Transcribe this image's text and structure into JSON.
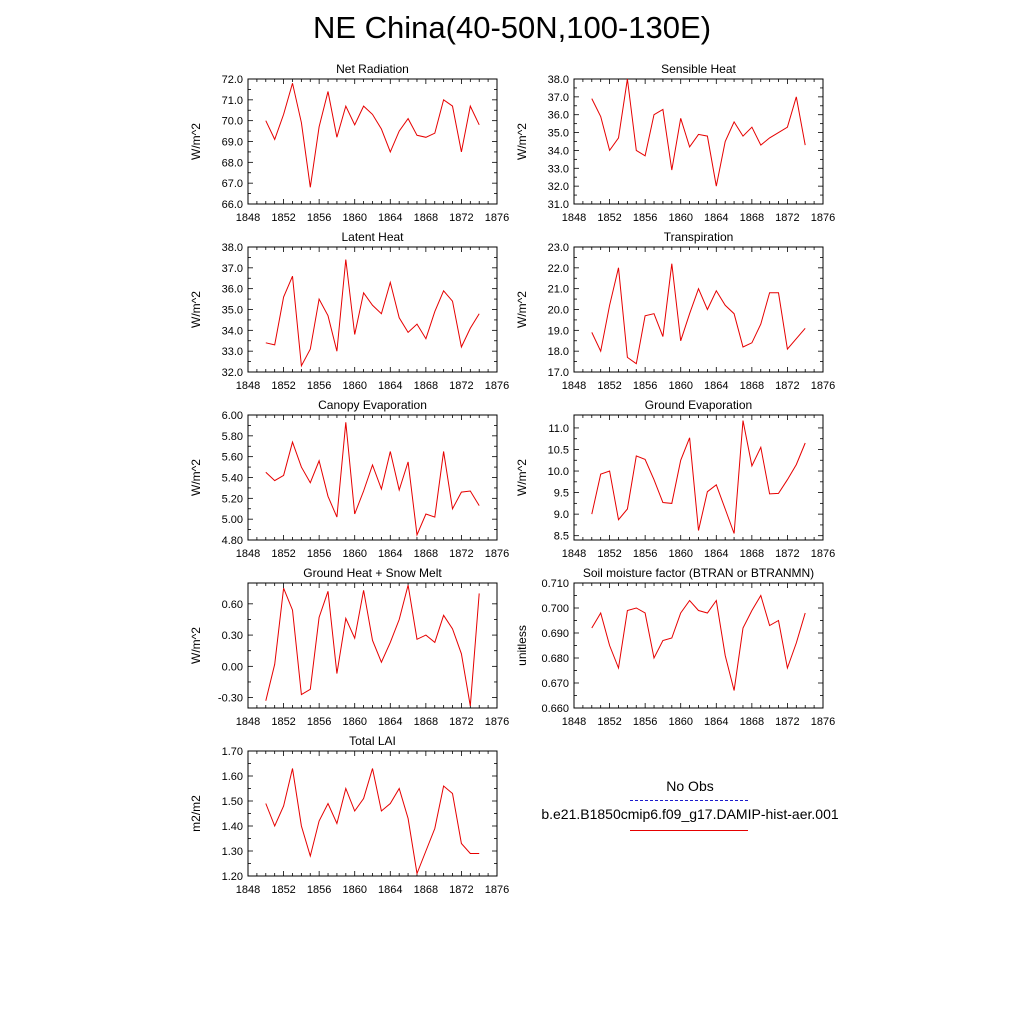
{
  "title": "NE China(40-50N,100-130E)",
  "colors": {
    "model": "#e60000",
    "obs": "#1a1acd",
    "axis": "#000000"
  },
  "legend": {
    "obs_label": "No Obs",
    "case_label": "b.e21.B1850cmip6.f09_g17.DAMIP-hist-aer.001"
  },
  "chart_data": [
    {
      "type": "line",
      "title": "Net Radiation",
      "xlabel": "",
      "ylabel": "W/m^2",
      "xlim": [
        1848,
        1876
      ],
      "ylim": [
        66.0,
        72.0
      ],
      "x_ticks": [
        "1848",
        "1852",
        "1856",
        "1860",
        "1864",
        "1868",
        "1872",
        "1876"
      ],
      "y_ticks": [
        "66.0",
        "67.0",
        "68.0",
        "69.0",
        "70.0",
        "71.0",
        "72.0"
      ],
      "x": [
        1850,
        1851,
        1852,
        1853,
        1854,
        1855,
        1856,
        1857,
        1858,
        1859,
        1860,
        1861,
        1862,
        1863,
        1864,
        1865,
        1866,
        1867,
        1868,
        1869,
        1870,
        1871,
        1872,
        1873,
        1874
      ],
      "series": [
        {
          "values": [
            70.0,
            69.1,
            70.3,
            71.8,
            69.9,
            66.8,
            69.7,
            71.4,
            69.2,
            70.7,
            69.8,
            70.7,
            70.3,
            69.6,
            68.5,
            69.5,
            70.1,
            69.3,
            69.2,
            69.4,
            71.0,
            70.7,
            68.5,
            70.7,
            69.8
          ]
        }
      ]
    },
    {
      "type": "line",
      "title": "Sensible Heat",
      "xlabel": "",
      "ylabel": "W/m^2",
      "xlim": [
        1848,
        1876
      ],
      "ylim": [
        31.0,
        38.0
      ],
      "x_ticks": [
        "1848",
        "1852",
        "1856",
        "1860",
        "1864",
        "1868",
        "1872",
        "1876"
      ],
      "y_ticks": [
        "31.0",
        "32.0",
        "33.0",
        "34.0",
        "35.0",
        "36.0",
        "37.0",
        "38.0"
      ],
      "x": [
        1850,
        1851,
        1852,
        1853,
        1854,
        1855,
        1856,
        1857,
        1858,
        1859,
        1860,
        1861,
        1862,
        1863,
        1864,
        1865,
        1866,
        1867,
        1868,
        1869,
        1870,
        1871,
        1872,
        1873,
        1874
      ],
      "series": [
        {
          "values": [
            36.9,
            35.9,
            34.0,
            34.7,
            38.0,
            34.0,
            33.7,
            36.0,
            36.3,
            32.9,
            35.8,
            34.2,
            34.9,
            34.8,
            32.0,
            34.5,
            35.6,
            34.8,
            35.3,
            34.3,
            34.7,
            35.0,
            35.3,
            37.0,
            34.3
          ]
        }
      ]
    },
    {
      "type": "line",
      "title": "Latent Heat",
      "xlabel": "",
      "ylabel": "W/m^2",
      "xlim": [
        1848,
        1876
      ],
      "ylim": [
        32.0,
        38.0
      ],
      "x_ticks": [
        "1848",
        "1852",
        "1856",
        "1860",
        "1864",
        "1868",
        "1872",
        "1876"
      ],
      "y_ticks": [
        "32.0",
        "33.0",
        "34.0",
        "35.0",
        "36.0",
        "37.0",
        "38.0"
      ],
      "x": [
        1850,
        1851,
        1852,
        1853,
        1854,
        1855,
        1856,
        1857,
        1858,
        1859,
        1860,
        1861,
        1862,
        1863,
        1864,
        1865,
        1866,
        1867,
        1868,
        1869,
        1870,
        1871,
        1872,
        1873,
        1874
      ],
      "series": [
        {
          "values": [
            33.4,
            33.3,
            35.6,
            36.6,
            32.3,
            33.1,
            35.5,
            34.7,
            33.0,
            37.4,
            33.8,
            35.8,
            35.2,
            34.8,
            36.3,
            34.6,
            33.9,
            34.3,
            33.6,
            34.9,
            35.9,
            35.4,
            33.2,
            34.1,
            34.8
          ]
        }
      ]
    },
    {
      "type": "line",
      "title": "Transpiration",
      "xlabel": "",
      "ylabel": "W/m^2",
      "xlim": [
        1848,
        1876
      ],
      "ylim": [
        17.0,
        23.0
      ],
      "x_ticks": [
        "1848",
        "1852",
        "1856",
        "1860",
        "1864",
        "1868",
        "1872",
        "1876"
      ],
      "y_ticks": [
        "17.0",
        "18.0",
        "19.0",
        "20.0",
        "21.0",
        "22.0",
        "23.0"
      ],
      "x": [
        1850,
        1851,
        1852,
        1853,
        1854,
        1855,
        1856,
        1857,
        1858,
        1859,
        1860,
        1861,
        1862,
        1863,
        1864,
        1865,
        1866,
        1867,
        1868,
        1869,
        1870,
        1871,
        1872,
        1873,
        1874
      ],
      "series": [
        {
          "values": [
            18.9,
            18.0,
            20.2,
            22.0,
            17.7,
            17.4,
            19.7,
            19.8,
            18.7,
            22.2,
            18.5,
            19.8,
            21.0,
            20.0,
            20.9,
            20.2,
            19.8,
            18.2,
            18.4,
            19.3,
            20.8,
            20.8,
            18.1,
            18.6,
            19.1
          ]
        }
      ]
    },
    {
      "type": "line",
      "title": "Canopy Evaporation",
      "xlabel": "",
      "ylabel": "W/m^2",
      "xlim": [
        1848,
        1876
      ],
      "ylim": [
        4.8,
        6.0
      ],
      "x_ticks": [
        "1848",
        "1852",
        "1856",
        "1860",
        "1864",
        "1868",
        "1872",
        "1876"
      ],
      "y_ticks": [
        "4.80",
        "5.00",
        "5.20",
        "5.40",
        "5.60",
        "5.80",
        "6.00"
      ],
      "x": [
        1850,
        1851,
        1852,
        1853,
        1854,
        1855,
        1856,
        1857,
        1858,
        1859,
        1860,
        1861,
        1862,
        1863,
        1864,
        1865,
        1866,
        1867,
        1868,
        1869,
        1870,
        1871,
        1872,
        1873,
        1874
      ],
      "series": [
        {
          "values": [
            5.45,
            5.37,
            5.42,
            5.74,
            5.5,
            5.35,
            5.56,
            5.22,
            5.02,
            5.93,
            5.05,
            5.27,
            5.52,
            5.29,
            5.65,
            5.28,
            5.55,
            4.85,
            5.05,
            5.02,
            5.65,
            5.1,
            5.26,
            5.27,
            5.13
          ]
        }
      ]
    },
    {
      "type": "line",
      "title": "Ground Evaporation",
      "xlabel": "",
      "ylabel": "W/m^2",
      "xlim": [
        1848,
        1876
      ],
      "ylim": [
        8.4,
        11.3
      ],
      "x_ticks": [
        "1848",
        "1852",
        "1856",
        "1860",
        "1864",
        "1868",
        "1872",
        "1876"
      ],
      "y_ticks": [
        "8.5",
        "9.0",
        "9.5",
        "10.0",
        "10.5",
        "11.0"
      ],
      "x": [
        1850,
        1851,
        1852,
        1853,
        1854,
        1855,
        1856,
        1857,
        1858,
        1859,
        1860,
        1861,
        1862,
        1863,
        1864,
        1865,
        1866,
        1867,
        1868,
        1869,
        1870,
        1871,
        1872,
        1873,
        1874
      ],
      "series": [
        {
          "values": [
            9.0,
            9.93,
            10.0,
            8.87,
            9.12,
            10.35,
            10.27,
            9.8,
            9.27,
            9.25,
            10.25,
            10.77,
            8.62,
            9.52,
            9.68,
            9.12,
            8.55,
            11.17,
            10.12,
            10.55,
            9.47,
            9.48,
            9.8,
            10.15,
            10.65
          ]
        }
      ]
    },
    {
      "type": "line",
      "title": "Ground Heat + Snow Melt",
      "xlabel": "",
      "ylabel": "W/m^2",
      "xlim": [
        1848,
        1876
      ],
      "ylim": [
        -0.4,
        0.8
      ],
      "x_ticks": [
        "1848",
        "1852",
        "1856",
        "1860",
        "1864",
        "1868",
        "1872",
        "1876"
      ],
      "y_ticks": [
        "-0.30",
        "0.00",
        "0.30",
        "0.60"
      ],
      "y_tick_values": [
        -0.3,
        0.0,
        0.3,
        0.6
      ],
      "x": [
        1850,
        1851,
        1852,
        1853,
        1854,
        1855,
        1856,
        1857,
        1858,
        1859,
        1860,
        1861,
        1862,
        1863,
        1864,
        1865,
        1866,
        1867,
        1868,
        1869,
        1870,
        1871,
        1872,
        1873,
        1874
      ],
      "series": [
        {
          "values": [
            -0.33,
            0.02,
            0.75,
            0.54,
            -0.27,
            -0.22,
            0.47,
            0.72,
            -0.07,
            0.46,
            0.27,
            0.73,
            0.25,
            0.04,
            0.23,
            0.45,
            0.78,
            0.26,
            0.3,
            0.23,
            0.49,
            0.36,
            0.12,
            -0.38,
            0.7
          ]
        }
      ]
    },
    {
      "type": "line",
      "title": "Soil moisture factor (BTRAN or BTRANMN)",
      "xlabel": "",
      "ylabel": "unitless",
      "xlim": [
        1848,
        1876
      ],
      "ylim": [
        0.66,
        0.71
      ],
      "x_ticks": [
        "1848",
        "1852",
        "1856",
        "1860",
        "1864",
        "1868",
        "1872",
        "1876"
      ],
      "y_ticks": [
        "0.660",
        "0.670",
        "0.680",
        "0.690",
        "0.700",
        "0.710"
      ],
      "x": [
        1850,
        1851,
        1852,
        1853,
        1854,
        1855,
        1856,
        1857,
        1858,
        1859,
        1860,
        1861,
        1862,
        1863,
        1864,
        1865,
        1866,
        1867,
        1868,
        1869,
        1870,
        1871,
        1872,
        1873,
        1874
      ],
      "series": [
        {
          "values": [
            0.692,
            0.698,
            0.685,
            0.676,
            0.699,
            0.7,
            0.698,
            0.68,
            0.687,
            0.688,
            0.698,
            0.703,
            0.699,
            0.698,
            0.703,
            0.681,
            0.667,
            0.692,
            0.699,
            0.705,
            0.693,
            0.695,
            0.676,
            0.686,
            0.698
          ]
        }
      ]
    },
    {
      "type": "line",
      "title": "Total LAI",
      "xlabel": "",
      "ylabel": "m2/m2",
      "xlim": [
        1848,
        1876
      ],
      "ylim": [
        1.2,
        1.7
      ],
      "x_ticks": [
        "1848",
        "1852",
        "1856",
        "1860",
        "1864",
        "1868",
        "1872",
        "1876"
      ],
      "y_ticks": [
        "1.20",
        "1.30",
        "1.40",
        "1.50",
        "1.60",
        "1.70"
      ],
      "x": [
        1850,
        1851,
        1852,
        1853,
        1854,
        1855,
        1856,
        1857,
        1858,
        1859,
        1860,
        1861,
        1862,
        1863,
        1864,
        1865,
        1866,
        1867,
        1868,
        1869,
        1870,
        1871,
        1872,
        1873,
        1874
      ],
      "series": [
        {
          "values": [
            1.49,
            1.4,
            1.48,
            1.63,
            1.4,
            1.28,
            1.42,
            1.49,
            1.41,
            1.55,
            1.46,
            1.51,
            1.63,
            1.46,
            1.49,
            1.55,
            1.43,
            1.21,
            1.3,
            1.39,
            1.56,
            1.53,
            1.33,
            1.29,
            1.29
          ]
        }
      ]
    }
  ]
}
